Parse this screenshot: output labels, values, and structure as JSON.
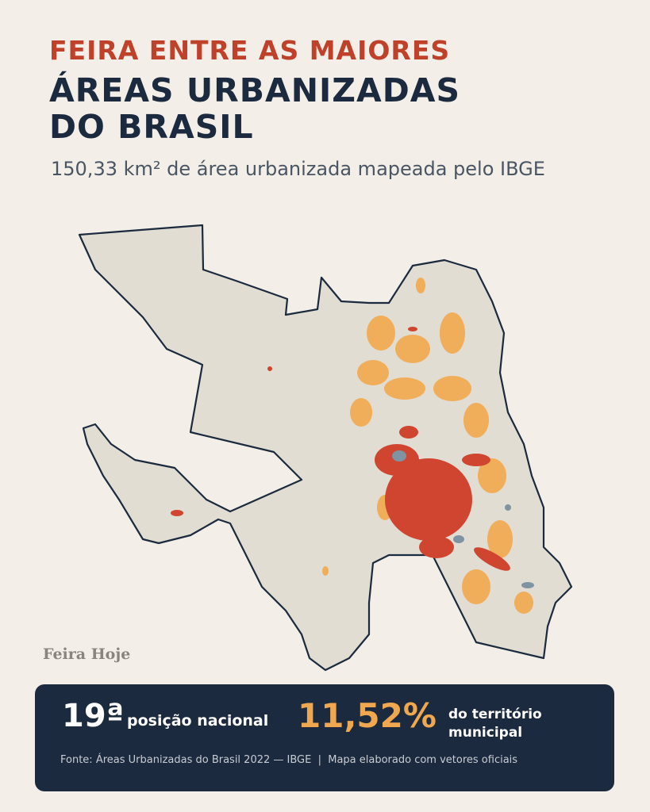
{
  "header": {
    "kicker": "FEIRA ENTRE AS MAIORES",
    "title_lines": [
      "ÁREAS URBANIZADAS",
      "DO BRASIL"
    ],
    "subtitle": "150,33 km² de área urbanizada mapeada pelo IBGE"
  },
  "map": {
    "watermark": "Feira Hoje"
  },
  "stats": {
    "rank": "19ª",
    "rank_label": "posição nacional",
    "share": "11,52%",
    "share_label": "do território municipal"
  },
  "footer": {
    "source": "Fonte: Áreas Urbanizadas do Brasil 2022 — IBGE  |  Mapa elaborado com vetores oficiais"
  }
}
